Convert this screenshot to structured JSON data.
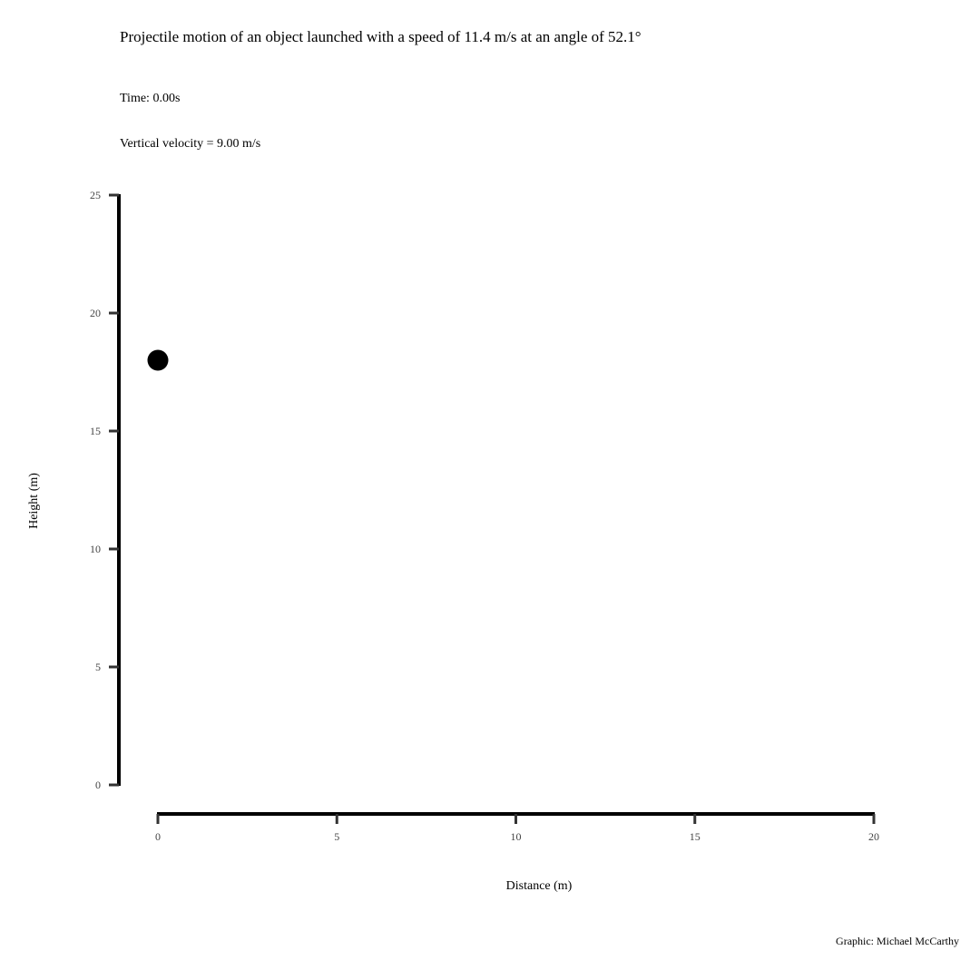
{
  "title": "Projectile motion of an object launched with a speed of 11.4 m/s at an angle of 52.1°",
  "time_text": "Time: 0.00s",
  "vertical_velocity_text": "Vertical velocity = 9.00 m/s",
  "credit": "Graphic: Michael McCarthy",
  "chart_data": {
    "type": "scatter",
    "xlabel": "Distance (m)",
    "ylabel": "Height (m)",
    "xlim": [
      0,
      20
    ],
    "ylim": [
      0,
      25
    ],
    "x_ticks": [
      0,
      5,
      10,
      15,
      20
    ],
    "y_ticks": [
      0,
      5,
      10,
      15,
      20,
      25
    ],
    "points": [
      {
        "x": 0,
        "y": 18
      }
    ],
    "grid": false
  }
}
